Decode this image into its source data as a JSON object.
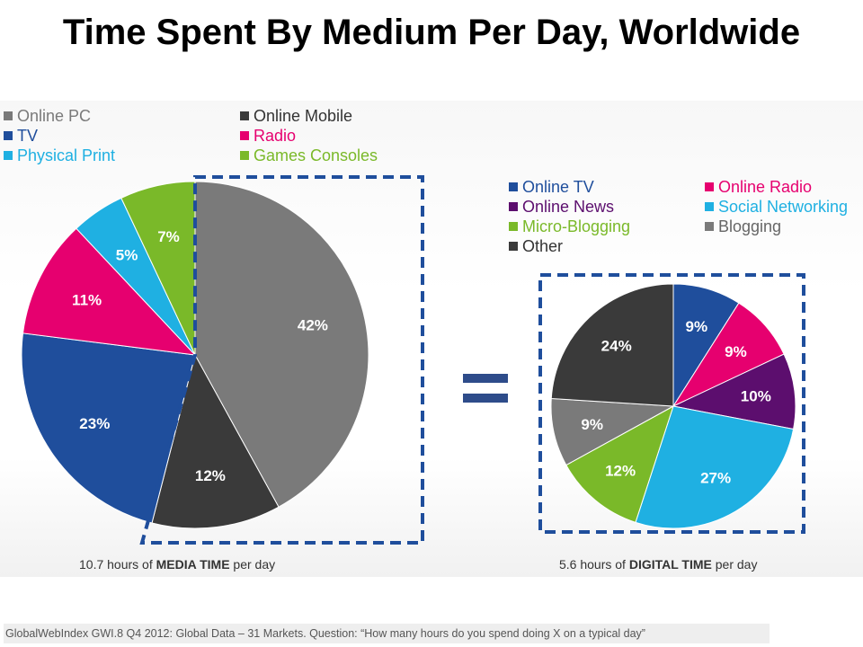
{
  "title": "Time Spent By Medium Per Day, Worldwide",
  "colors": {
    "online_pc": "#7a7a7a",
    "online_mobile": "#3a3a3a",
    "tv": "#1f4e9c",
    "radio": "#e6006f",
    "physical_print": "#1fb0e2",
    "games_consoles": "#7ab929",
    "online_tv": "#1f4e9c",
    "online_radio": "#e6006f",
    "online_news": "#5c0e6e",
    "social_networking": "#1fb0e2",
    "micro_blogging": "#7ab929",
    "blogging": "#7a7a7a",
    "other": "#3a3a3a",
    "highlight_box": "#1f4e9c",
    "equals": "#2e4c8a"
  },
  "chart_data": [
    {
      "type": "pie",
      "categories": [
        "Online PC",
        "Online Mobile",
        "TV",
        "Radio",
        "Physical Print",
        "Games Consoles"
      ],
      "values": [
        42,
        12,
        23,
        11,
        5,
        7
      ],
      "labels": [
        "42%",
        "12%",
        "23%",
        "11%",
        "5%",
        "7%"
      ],
      "caption_prefix": "10.7 hours of ",
      "caption_bold": "MEDIA TIME",
      "caption_suffix": " per day",
      "legend_placement": "top"
    },
    {
      "type": "pie",
      "categories": [
        "Online TV",
        "Online Radio",
        "Online News",
        "Social Networking",
        "Micro-Blogging",
        "Blogging",
        "Other"
      ],
      "values": [
        9,
        9,
        10,
        27,
        12,
        9,
        24
      ],
      "labels": [
        "9%",
        "9%",
        "10%",
        "27%",
        "12%",
        "9%",
        "24%"
      ],
      "caption_prefix": "5.6 hours of ",
      "caption_bold": "DIGITAL TIME",
      "caption_suffix": " per day",
      "legend_placement": "top"
    }
  ],
  "source": "GlobalWebIndex GWI.8 Q4 2012: Global Data – 31 Markets. Question: “How many hours do you spend doing X on a typical day”"
}
